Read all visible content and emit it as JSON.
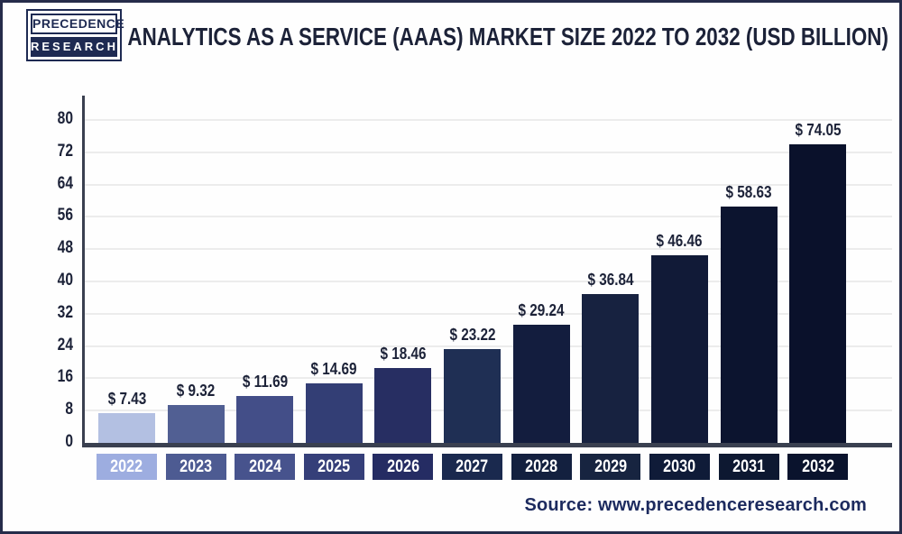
{
  "header": {
    "logo": {
      "line1": "PRECEDENCE",
      "line2": "RESEARCH"
    },
    "title": "ANALYTICS AS A SERVICE (AAAS) MARKET SIZE 2022 TO 2032 (USD BILLION)"
  },
  "chart_data": {
    "type": "bar",
    "title": "Analytics as a Service (AaaS) Market Size 2022 to 2032 (USD Billion)",
    "unit": "USD Billion",
    "categories": [
      "2022",
      "2023",
      "2024",
      "2025",
      "2026",
      "2027",
      "2028",
      "2029",
      "2030",
      "2031",
      "2032"
    ],
    "values": [
      7.43,
      9.32,
      11.69,
      14.69,
      18.46,
      23.22,
      29.24,
      36.84,
      46.46,
      58.63,
      74.05
    ],
    "value_labels": [
      "$ 7.43",
      "$ 9.32",
      "$ 11.69",
      "$ 14.69",
      "$ 18.46",
      "$ 23.22",
      "$ 29.24",
      "$ 36.84",
      "$ 46.46",
      "$ 58.63",
      "$ 74.05"
    ],
    "xlabel": "",
    "ylabel": "",
    "ylim": [
      0,
      80
    ],
    "yticks": [
      0,
      8,
      16,
      24,
      32,
      40,
      48,
      56,
      64,
      72,
      80
    ],
    "grid": "horizontal",
    "legend": "none",
    "bar_colors": [
      "#b3c0e2",
      "#515f93",
      "#434e88",
      "#333e75",
      "#272e62",
      "#1f2f54",
      "#131d3e",
      "#172240",
      "#111a37",
      "#0c142f",
      "#0a112b"
    ],
    "label_box_colors": [
      "#9dade0",
      "#4d5b92",
      "#47538d",
      "#353f79",
      "#252c63",
      "#1a294e",
      "#13203f",
      "#172440",
      "#0f1b38",
      "#0d1831",
      "#0a132d"
    ]
  },
  "footer": {
    "source": "Source: www.precedenceresearch.com"
  },
  "colors": {
    "frame_border": "#262c4a",
    "axis": "#3a4050",
    "gridline": "#ececec",
    "text_navy": "#1c2238",
    "source_navy": "#1c2a5e",
    "logo_navy": "#1e2a52",
    "background": "#fefefe"
  }
}
